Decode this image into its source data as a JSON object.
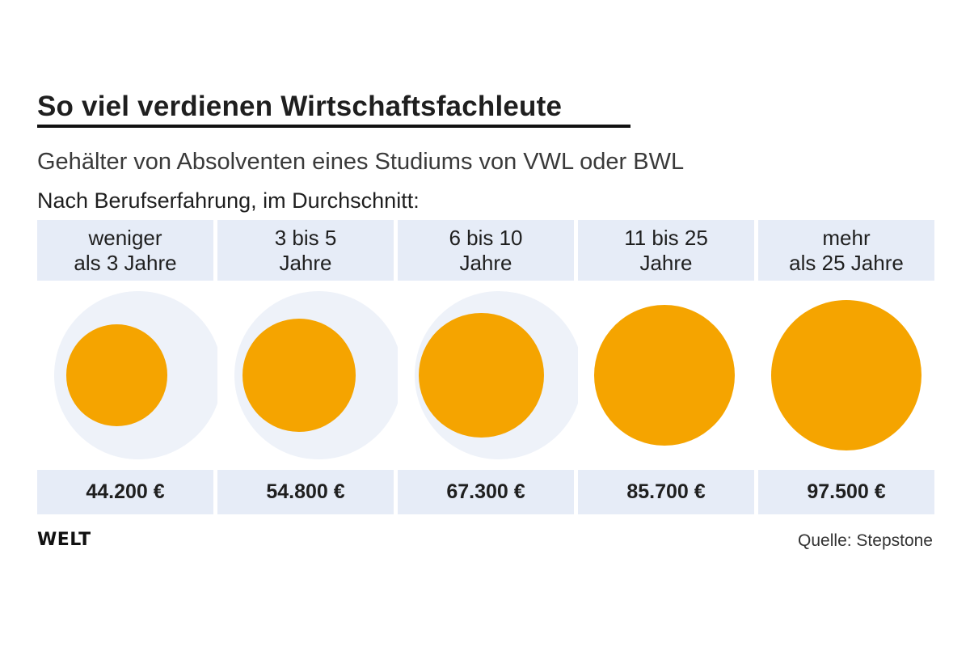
{
  "header": {
    "title": "So viel verdienen Wirtschaftsfachleute",
    "subtitle": "Gehälter von Absolventen eines Studiums von VWL oder BWL",
    "group_label": "Nach Berufserfahrung, im Durchschnitt:"
  },
  "footer": {
    "brand": "WELT",
    "source": "Quelle: Stepstone"
  },
  "colors": {
    "circle": "#f5a400",
    "halo": "#eef2f9",
    "panel": "#e6ecf7"
  },
  "chart_data": {
    "type": "proportional-circles",
    "unit": "€",
    "categories": [
      [
        "weniger",
        "als 3 Jahre"
      ],
      [
        "3 bis 5",
        "Jahre"
      ],
      [
        "6 bis 10",
        "Jahre"
      ],
      [
        "11 bis 25",
        "Jahre"
      ],
      [
        "mehr",
        "als 25 Jahre"
      ]
    ],
    "values": [
      44200,
      54800,
      67300,
      85700,
      97500
    ],
    "value_labels": [
      "44.200 €",
      "54.800 €",
      "67.300 €",
      "85.700 €",
      "97.500 €"
    ],
    "max_reference": 97500
  }
}
